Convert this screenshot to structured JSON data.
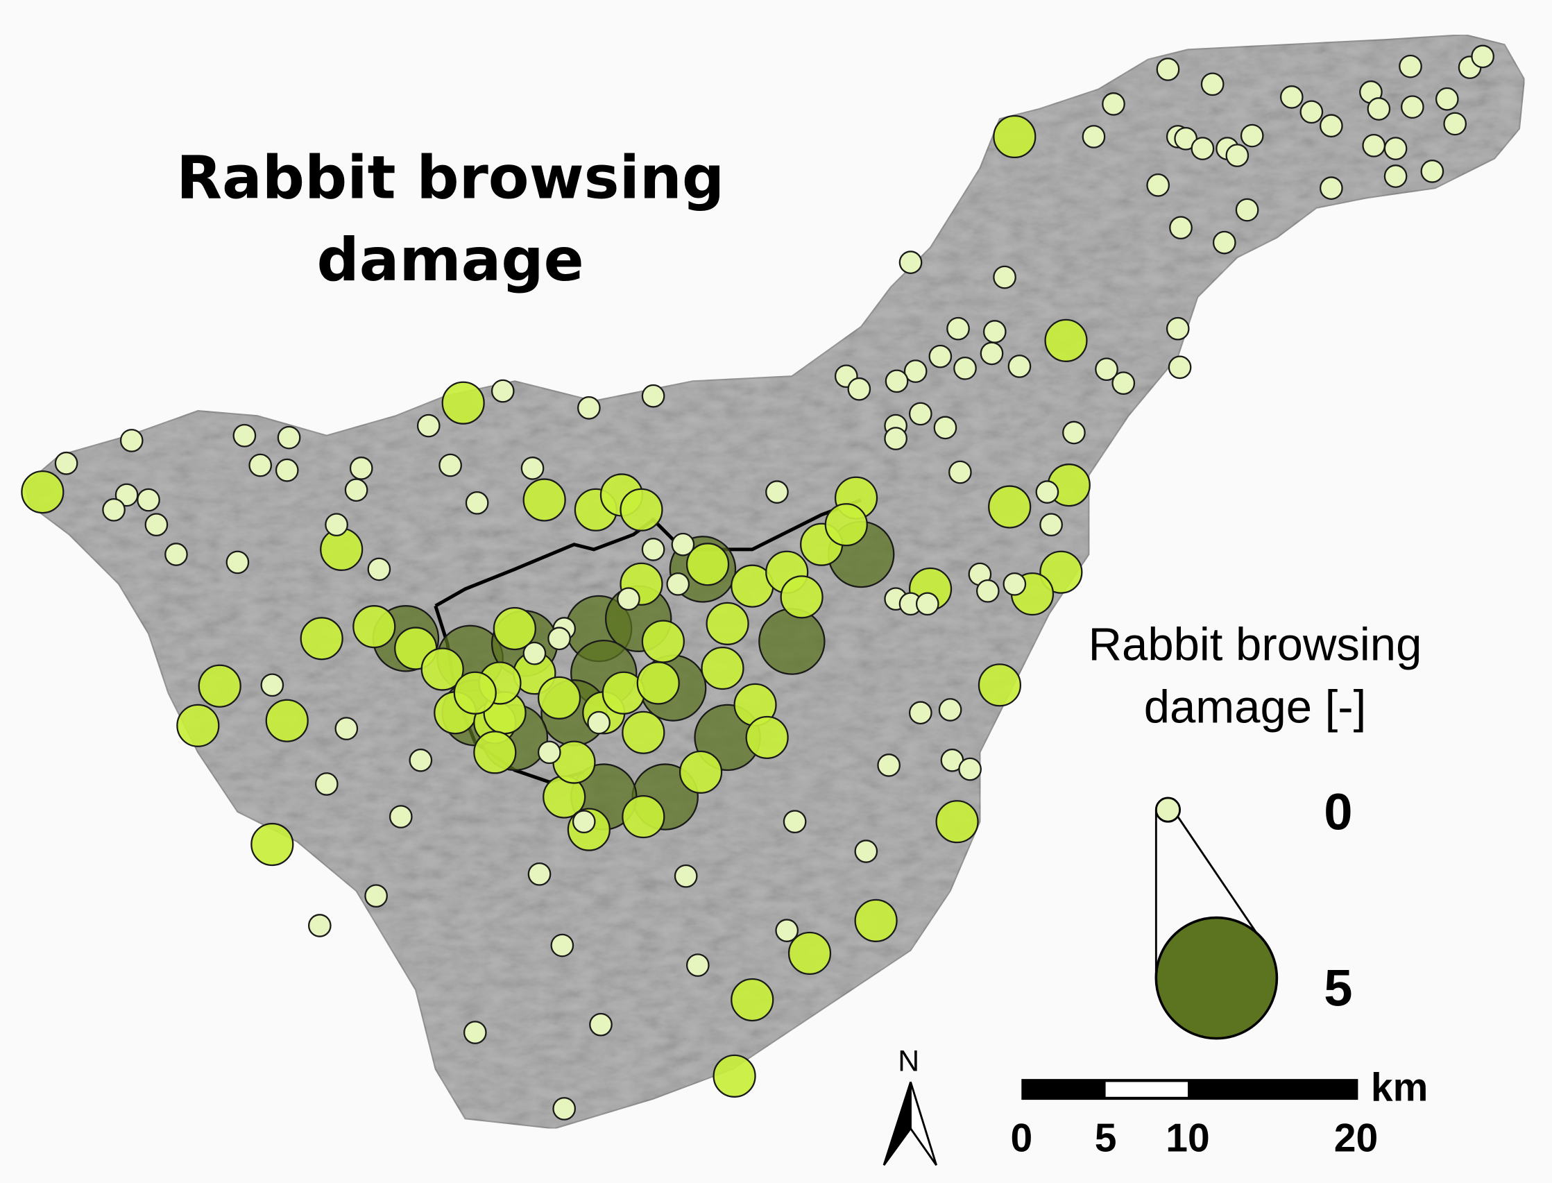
{
  "map": {
    "title_line1": "Rabbit browsing",
    "title_line2": "damage",
    "legend": {
      "title_line1": "Rabbit browsing",
      "title_line2": "damage [-]",
      "min_label": "0",
      "max_label": "5",
      "min_value": 0,
      "max_value": 5
    },
    "scale_bar": {
      "unit": "km",
      "ticks": [
        "0",
        "5",
        "10",
        "20"
      ]
    },
    "north_arrow": {
      "label": "N"
    },
    "colors": {
      "low": "#e6f5bd",
      "mid": "#c8ef3a",
      "high": "#5c7320",
      "terrain": "#b4b4b4",
      "caldera_line": "#000000",
      "background": "#fafafa"
    }
  }
}
